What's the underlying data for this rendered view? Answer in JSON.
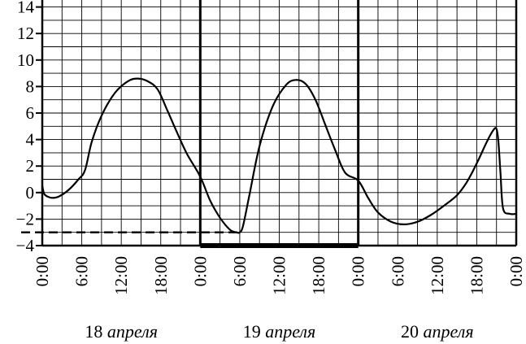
{
  "chart_data": {
    "type": "line",
    "title": "",
    "xlabel": "",
    "ylabel": "",
    "ylim": [
      -4,
      15
    ],
    "xlim": [
      0,
      72
    ],
    "y_ticks": [
      {
        "value": 14,
        "label": "14"
      },
      {
        "value": 12,
        "label": "12"
      },
      {
        "value": 10,
        "label": "10"
      },
      {
        "value": 8,
        "label": "8"
      },
      {
        "value": 6,
        "label": "6"
      },
      {
        "value": 4,
        "label": "4"
      },
      {
        "value": 2,
        "label": "2"
      },
      {
        "value": 0,
        "label": "0"
      },
      {
        "value": -2,
        "label": "−2"
      },
      {
        "value": -4,
        "label": "−4"
      }
    ],
    "x_ticks": [
      {
        "value": 0,
        "label": "0:00"
      },
      {
        "value": 6,
        "label": "6:00"
      },
      {
        "value": 12,
        "label": "12:00"
      },
      {
        "value": 18,
        "label": "18:00"
      },
      {
        "value": 24,
        "label": "0:00"
      },
      {
        "value": 30,
        "label": "6:00"
      },
      {
        "value": 36,
        "label": "12:00"
      },
      {
        "value": 42,
        "label": "18:00"
      },
      {
        "value": 48,
        "label": "0:00"
      },
      {
        "value": 54,
        "label": "6:00"
      },
      {
        "value": 60,
        "label": "12:00"
      },
      {
        "value": 66,
        "label": "18:00"
      },
      {
        "value": 72,
        "label": "0:00"
      }
    ],
    "day_labels": [
      {
        "number": "18",
        "month": "апреля"
      },
      {
        "number": "19",
        "month": "апреля"
      },
      {
        "number": "20",
        "month": "апреля"
      }
    ],
    "grid": true,
    "highlight_day": [
      24,
      48
    ],
    "highlight_floor": -4,
    "reference_line": {
      "y": -3,
      "x_from": 0,
      "x_to": 30,
      "style": "dashed"
    },
    "series": [
      {
        "x": [
          0,
          0.3,
          0.8,
          1.5,
          2.5,
          4,
          5.5,
          6.5,
          7.5,
          9,
          11,
          13,
          14.5,
          16,
          17.5,
          19,
          20.5,
          22,
          24,
          25.5,
          27,
          28.5,
          29.5,
          30,
          30.5,
          31.5,
          33,
          35,
          37,
          38.5,
          40,
          41.5,
          43,
          44.5,
          46,
          48,
          49.5,
          51,
          53,
          55,
          57,
          59,
          61,
          63,
          64.5,
          66,
          67.5,
          68.5,
          69,
          69.3,
          69.6,
          70,
          71,
          72
        ],
        "y": [
          0.5,
          -0.1,
          -0.3,
          -0.4,
          -0.3,
          0.2,
          1.0,
          1.7,
          3.8,
          5.8,
          7.5,
          8.4,
          8.6,
          8.4,
          7.8,
          6.2,
          4.5,
          2.9,
          1.2,
          -0.6,
          -1.9,
          -2.8,
          -3.0,
          -3.0,
          -2.5,
          -0.1,
          3.5,
          6.5,
          8.1,
          8.5,
          8.2,
          7.0,
          5.1,
          3.2,
          1.5,
          0.9,
          -0.4,
          -1.5,
          -2.2,
          -2.4,
          -2.2,
          -1.7,
          -1.0,
          -0.2,
          0.8,
          2.2,
          3.8,
          4.7,
          4.8,
          3.8,
          1.5,
          -1.2,
          -1.6,
          -1.6
        ]
      }
    ]
  }
}
